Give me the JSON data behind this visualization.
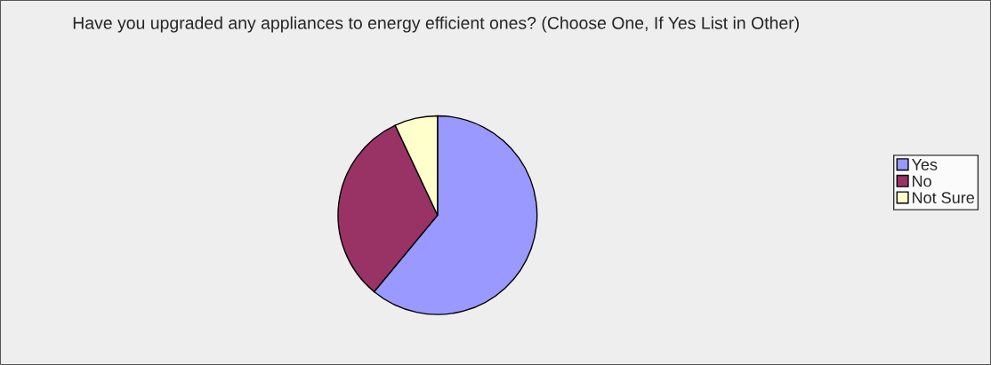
{
  "chart_data": {
    "type": "pie",
    "title": "Have you upgraded any appliances to energy efficient ones? (Choose One, If Yes List in Other)",
    "categories": [
      "Yes",
      "No",
      "Not Sure"
    ],
    "values": [
      61,
      32,
      7
    ],
    "colors": [
      "#9999ff",
      "#993366",
      "#ffffcc"
    ],
    "legend": "right"
  }
}
